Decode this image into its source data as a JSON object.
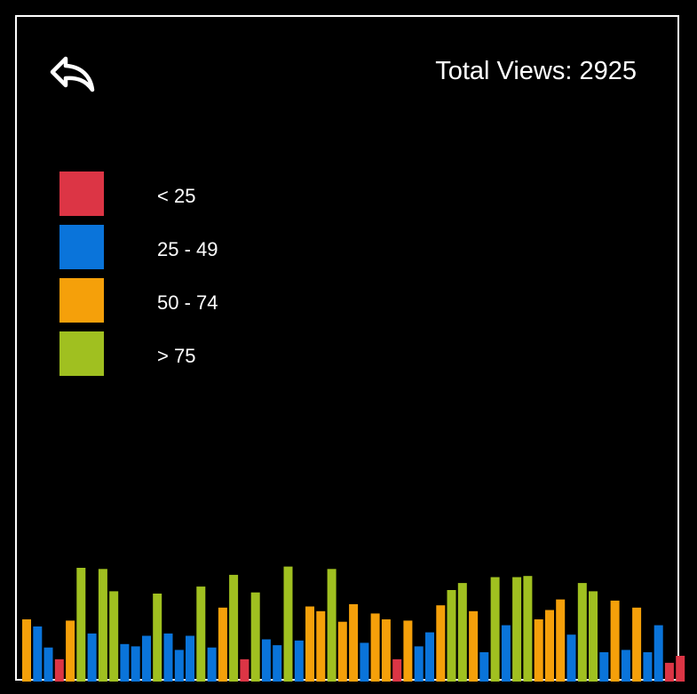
{
  "header": {
    "back_icon": "reply-arrow-icon",
    "total_views_label": "Total Views: 2925"
  },
  "colors": {
    "background": "#000000",
    "border": "#ffffff",
    "lt25": "#dc3545",
    "25to49": "#0a74da",
    "50to74": "#f5a00a",
    "gt75": "#a0c020"
  },
  "legend": {
    "items": [
      {
        "label": "< 25",
        "color": "#dc3545"
      },
      {
        "label": "25 - 49",
        "color": "#0a74da"
      },
      {
        "label": "50 - 74",
        "color": "#f5a00a"
      },
      {
        "label": "> 75",
        "color": "#a0c020"
      }
    ]
  },
  "chart_data": {
    "type": "bar",
    "title": "",
    "xlabel": "",
    "ylabel": "",
    "ylim": [
      0,
      100
    ],
    "grid": false,
    "legend_placement": "top-left",
    "values": [
      53,
      47,
      29,
      19,
      52,
      97,
      41,
      96,
      77,
      32,
      30,
      39,
      75,
      41,
      27,
      39,
      81,
      29,
      63,
      91,
      19,
      76,
      36,
      31,
      98,
      35,
      64,
      60,
      96,
      51,
      66,
      33,
      58,
      53,
      19,
      52,
      30,
      42,
      65,
      78,
      84,
      60,
      25,
      89,
      48,
      89,
      90,
      53,
      61,
      70,
      40,
      84,
      77,
      25,
      69,
      27,
      63,
      25,
      48,
      16,
      22
    ]
  }
}
